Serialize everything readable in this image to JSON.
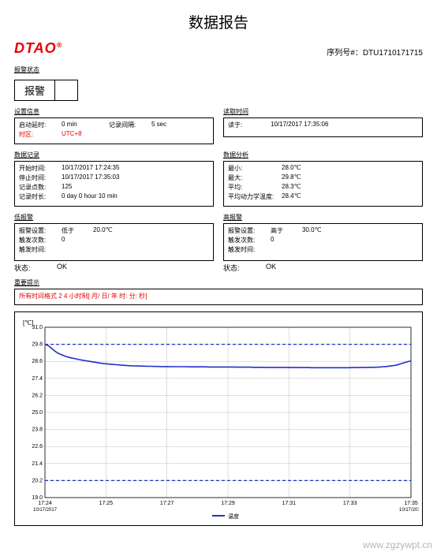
{
  "page_title": "数据报告",
  "logo": "DTAO",
  "serial": {
    "label": "序列号#：",
    "value": "DTU1710171715"
  },
  "alarm_status": {
    "section": "报警状态",
    "text": "报警",
    "side": ""
  },
  "device_info": {
    "section": "设置信息",
    "rows": [
      {
        "k": "启动延时:",
        "v": "0 min",
        "k2": "记录间隔:",
        "v2": "5 sec"
      },
      {
        "k": "时区:",
        "v": "UTC+8"
      }
    ]
  },
  "read_time": {
    "section": "读取时间",
    "rows": [
      {
        "k": "读于:",
        "v": "10/17/2017 17:35:06"
      }
    ]
  },
  "data_record": {
    "section": "数据记录",
    "rows": [
      {
        "k": "开始时间:",
        "v": "10/17/2017 17:24:35"
      },
      {
        "k": "停止时间:",
        "v": "10/17/2017 17:35:03"
      },
      {
        "k": "记录点数:",
        "v": "125"
      },
      {
        "k": "记录时长:",
        "v": "0 day 0 hour 10 min"
      }
    ]
  },
  "data_analysis": {
    "section": "数据分析",
    "rows": [
      {
        "k": "最小:",
        "v": "28.0℃"
      },
      {
        "k": "最大:",
        "v": "29.8℃"
      },
      {
        "k": "平均:",
        "v": "28.3℃"
      },
      {
        "k": "平均动力学温度:",
        "v": "28.4℃"
      }
    ]
  },
  "low": {
    "section": "低报警",
    "rows": [
      {
        "k": "报警设置:",
        "k2": "低于",
        "v": "20.0℃"
      },
      {
        "k": "触发次数:",
        "v": "0"
      },
      {
        "k": "触发时间:",
        "v": ""
      }
    ],
    "status_k": "状态:",
    "status_v": "OK"
  },
  "high": {
    "section": "高报警",
    "rows": [
      {
        "k": "报警设置:",
        "k2": "高于",
        "v": "30.0℃"
      },
      {
        "k": "触发次数:",
        "v": "0"
      },
      {
        "k": "触发时间:",
        "v": ""
      }
    ],
    "status_k": "状态:",
    "status_v": "OK"
  },
  "tips": {
    "section": "重要提示",
    "text": "所有时间格式 2 4 小时制[ 月/ 日/ 年  时: 分: 秒]"
  },
  "chart": {
    "y_axis_label": "[℃]",
    "ylim": [
      19.0,
      31.0
    ],
    "yticks": [
      19.0,
      20.2,
      21.4,
      22.6,
      23.8,
      25.0,
      26.2,
      27.4,
      28.6,
      29.8,
      31.0
    ],
    "xticks": [
      "17:24",
      "17:25",
      "17:27",
      "17:29",
      "17:31",
      "17:33",
      "17:35"
    ],
    "xdate": "10/17/2017",
    "high_line": 29.8,
    "low_line": 20.2,
    "line_color": "#2030c8",
    "alarm_color": "#2030c8",
    "dash": "4 3",
    "grid_color": "#bfbfbf",
    "border_color": "#000",
    "bg": "#fff",
    "legend": "温度",
    "data": [
      29.8,
      29.7,
      29.5,
      29.3,
      29.15,
      29.05,
      28.95,
      28.88,
      28.82,
      28.78,
      28.72,
      28.68,
      28.64,
      28.6,
      28.56,
      28.52,
      28.48,
      28.45,
      28.42,
      28.4,
      28.38,
      28.36,
      28.34,
      28.32,
      28.3,
      28.29,
      28.28,
      28.27,
      28.26,
      28.26,
      28.25,
      28.25,
      28.24,
      28.24,
      28.23,
      28.23,
      28.23,
      28.22,
      28.22,
      28.22,
      28.22,
      28.22,
      28.21,
      28.21,
      28.21,
      28.21,
      28.21,
      28.21,
      28.2,
      28.2,
      28.2,
      28.2,
      28.2,
      28.2,
      28.2,
      28.2,
      28.19,
      28.19,
      28.19,
      28.19,
      28.19,
      28.18,
      28.18,
      28.18,
      28.18,
      28.17,
      28.17,
      28.17,
      28.17,
      28.17,
      28.17,
      28.17,
      28.16,
      28.16,
      28.16,
      28.16,
      28.16,
      28.16,
      28.15,
      28.15,
      28.15,
      28.15,
      28.15,
      28.15,
      28.15,
      28.15,
      28.15,
      28.15,
      28.15,
      28.15,
      28.16,
      28.16,
      28.16,
      28.17,
      28.17,
      28.18,
      28.18,
      28.19,
      28.2,
      28.22,
      28.24,
      28.27,
      28.3,
      28.35,
      28.42,
      28.5,
      28.58,
      28.62
    ]
  },
  "watermark": "www.zgzywpt.cn"
}
